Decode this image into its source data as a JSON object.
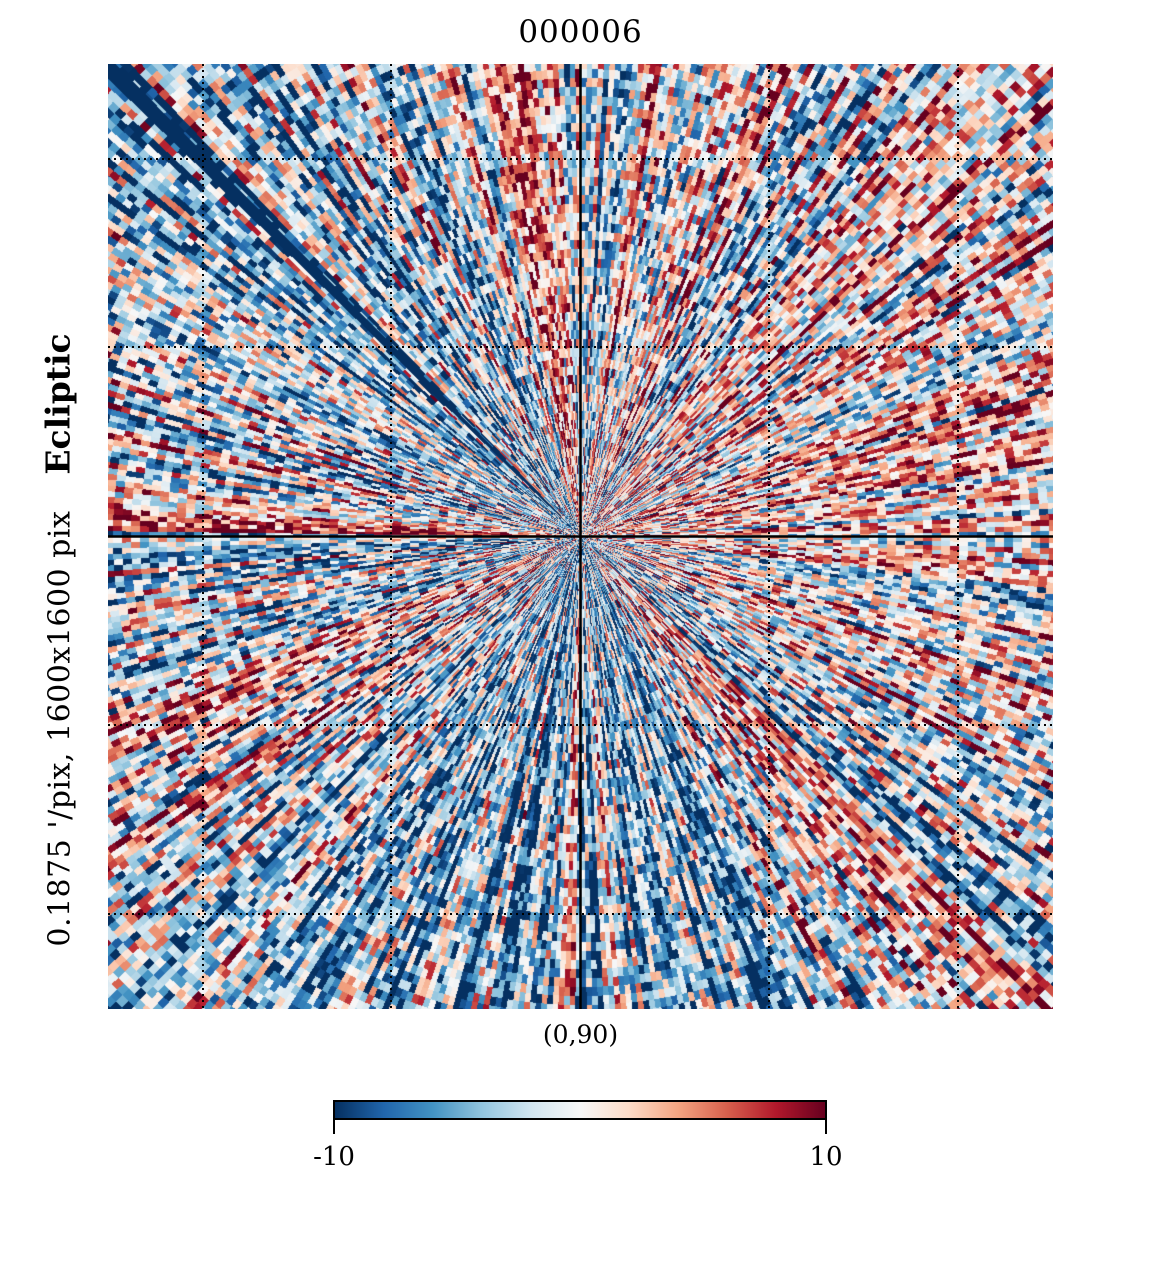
{
  "chart_data": {
    "type": "heatmap",
    "title": "000006",
    "projection": "gnomonic",
    "center_label": "(0,90)",
    "coord_frame": "Ecliptic",
    "resolution_label": "0.1875 '/pix,   1600x1600 pix",
    "colormap": "RdBu_r",
    "colorbar": {
      "min": -10,
      "max": 10,
      "min_label": "-10",
      "max_label": "10"
    },
    "graticule": {
      "style": "dotted",
      "color": "#000000"
    },
    "center_crosshair": true
  },
  "colors": {
    "cmap_stops": [
      "#053061",
      "#2166ac",
      "#4393c3",
      "#92c5de",
      "#d1e5f0",
      "#f7f7f7",
      "#fddbc7",
      "#f4a582",
      "#d6604d",
      "#b2182b",
      "#67001f"
    ]
  }
}
